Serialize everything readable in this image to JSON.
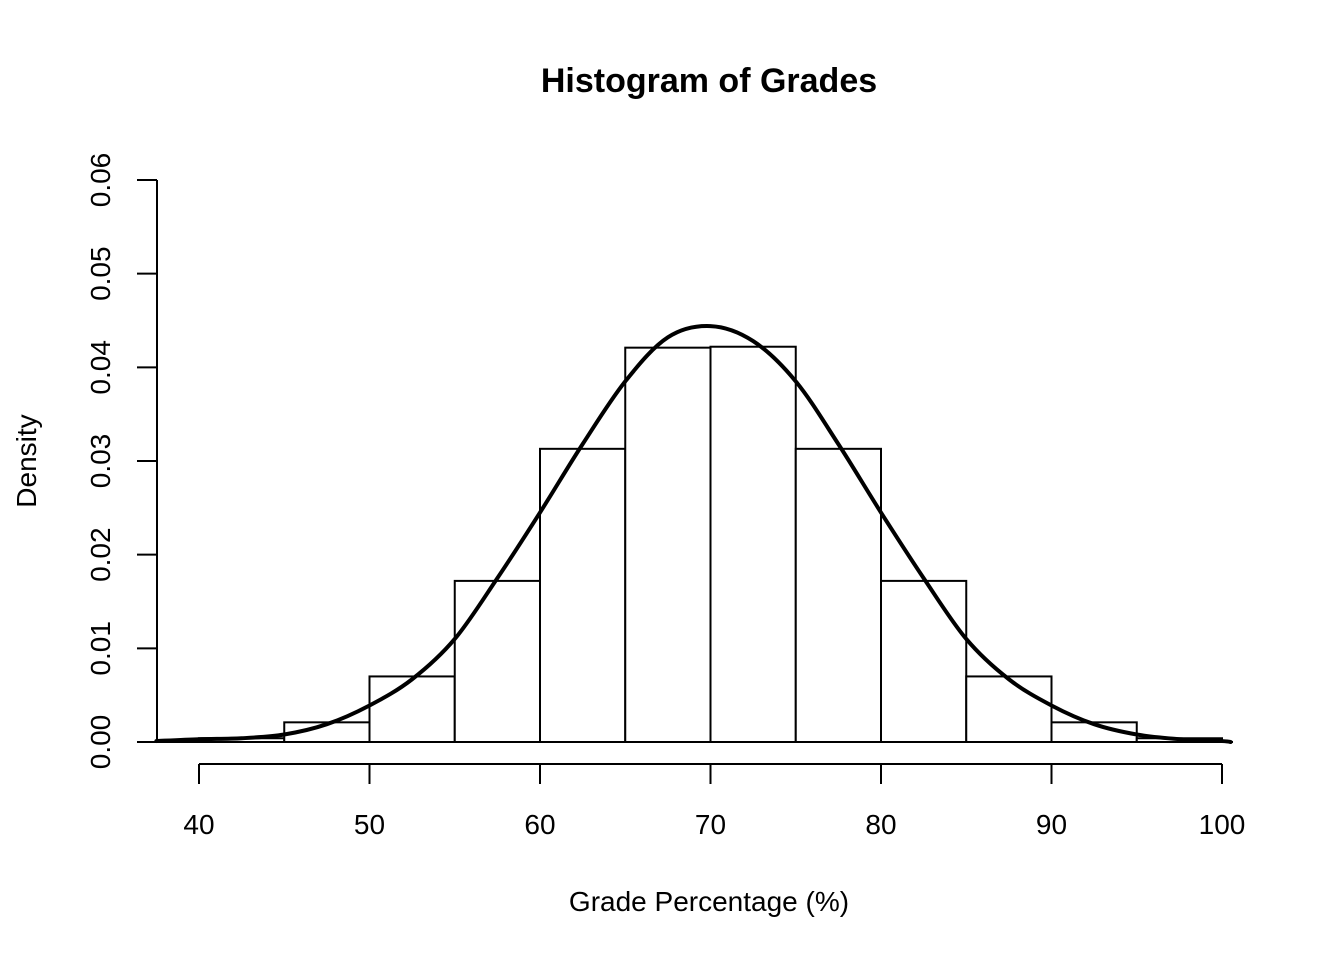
{
  "chart_data": {
    "type": "bar",
    "title": "Histogram of Grades",
    "xlabel": "Grade Percentage (%)",
    "ylabel": "Density",
    "xlim": [
      37.5,
      100.5
    ],
    "ylim": [
      0,
      0.06
    ],
    "x_ticks": [
      40,
      50,
      60,
      70,
      80,
      90,
      100
    ],
    "x_tick_labels": [
      "40",
      "50",
      "60",
      "70",
      "80",
      "90",
      "100"
    ],
    "y_ticks": [
      0,
      0.01,
      0.02,
      0.03,
      0.04,
      0.05,
      0.06
    ],
    "y_tick_labels": [
      "0.00",
      "0.01",
      "0.02",
      "0.03",
      "0.04",
      "0.05",
      "0.06"
    ],
    "grid": false,
    "bins": [
      {
        "start": 35,
        "end": 40,
        "density": 0.0001
      },
      {
        "start": 40,
        "end": 45,
        "density": 0.0004
      },
      {
        "start": 45,
        "end": 50,
        "density": 0.0021
      },
      {
        "start": 50,
        "end": 55,
        "density": 0.007
      },
      {
        "start": 55,
        "end": 60,
        "density": 0.0172
      },
      {
        "start": 60,
        "end": 65,
        "density": 0.0313
      },
      {
        "start": 65,
        "end": 70,
        "density": 0.0421
      },
      {
        "start": 70,
        "end": 75,
        "density": 0.0422
      },
      {
        "start": 75,
        "end": 80,
        "density": 0.0313
      },
      {
        "start": 80,
        "end": 85,
        "density": 0.0172
      },
      {
        "start": 85,
        "end": 90,
        "density": 0.007
      },
      {
        "start": 90,
        "end": 95,
        "density": 0.0021
      },
      {
        "start": 95,
        "end": 100,
        "density": 0.0004
      }
    ],
    "density_curve": {
      "x": [
        37.5,
        40,
        42.5,
        45,
        47.5,
        50,
        52.5,
        55,
        57.5,
        60,
        62.5,
        65,
        67.5,
        70,
        72.5,
        75,
        77.5,
        80,
        82.5,
        85,
        87.5,
        90,
        92.5,
        95,
        97.5,
        100,
        100.5
      ],
      "y": [
        0.0001,
        0.0003,
        0.0004,
        0.0008,
        0.0019,
        0.0039,
        0.0067,
        0.011,
        0.0175,
        0.0245,
        0.0318,
        0.0385,
        0.0432,
        0.0444,
        0.0428,
        0.0385,
        0.0318,
        0.0245,
        0.0175,
        0.011,
        0.0067,
        0.0039,
        0.0019,
        0.0008,
        0.0003,
        0.0001,
        0.0
      ]
    }
  }
}
